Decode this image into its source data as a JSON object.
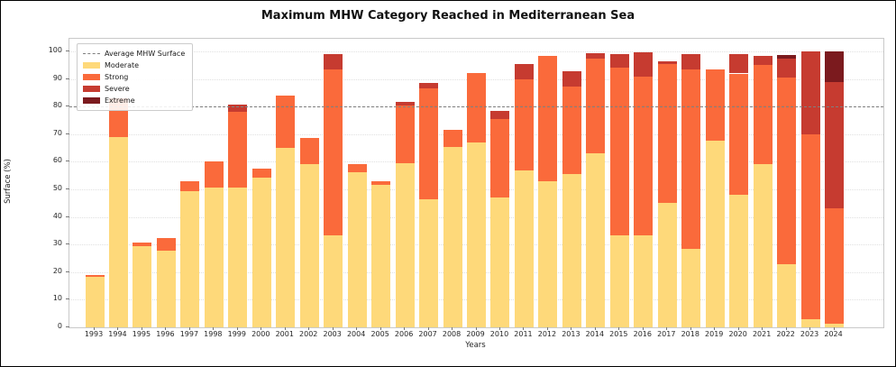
{
  "chart_data": {
    "type": "bar",
    "stacked": true,
    "title": "Maximum MHW Category Reached in Mediterranean Sea",
    "xlabel": "Years",
    "ylabel": "Surface (%)",
    "ylim": [
      0,
      100
    ],
    "yticks": [
      0,
      10,
      20,
      30,
      40,
      50,
      60,
      70,
      80,
      90,
      100
    ],
    "grid": "dotted-horizontal",
    "legend_position": "upper-left",
    "categories": [
      "1993",
      "1994",
      "1995",
      "1996",
      "1997",
      "1998",
      "1999",
      "2000",
      "2001",
      "2002",
      "2003",
      "2004",
      "2005",
      "2006",
      "2007",
      "2008",
      "2009",
      "2010",
      "2011",
      "2012",
      "2013",
      "2014",
      "2015",
      "2016",
      "2017",
      "2018",
      "2019",
      "2020",
      "2021",
      "2022",
      "2023",
      "2024"
    ],
    "series": [
      {
        "name": "Moderate",
        "color": "#FED97A",
        "values": [
          18.2,
          69.0,
          29.3,
          27.8,
          49.4,
          50.5,
          50.7,
          54.2,
          65.2,
          59.0,
          33.5,
          56.2,
          51.6,
          59.6,
          46.5,
          65.5,
          67.0,
          47.0,
          57.0,
          52.8,
          55.5,
          63.2,
          33.5,
          33.5,
          45.2,
          28.4,
          67.5,
          48.0,
          59.0,
          22.8,
          3.1,
          1.2
        ]
      },
      {
        "name": "Strong",
        "color": "#FA6A3B",
        "values": [
          0.9,
          14.0,
          1.3,
          4.6,
          3.5,
          9.8,
          27.3,
          3.4,
          18.8,
          9.7,
          60.0,
          3.0,
          1.4,
          20.7,
          40.0,
          6.2,
          25.2,
          28.5,
          33.0,
          45.5,
          31.8,
          34.3,
          60.5,
          57.5,
          50.1,
          65.1,
          26.0,
          44.0,
          36.0,
          67.6,
          67.0,
          41.8
        ]
      },
      {
        "name": "Severe",
        "color": "#C63B30",
        "values": [
          0,
          0,
          0,
          0,
          0,
          0,
          2.8,
          0,
          0,
          0,
          5.4,
          0,
          0,
          1.4,
          2.0,
          0,
          0,
          3.0,
          5.5,
          0,
          5.5,
          1.9,
          5.0,
          8.8,
          1.2,
          5.5,
          0,
          7.0,
          3.3,
          6.9,
          29.9,
          46.0
        ]
      },
      {
        "name": "Extreme",
        "color": "#7B1A1E",
        "values": [
          0,
          0,
          0,
          0,
          0,
          0,
          0,
          0,
          0,
          0,
          0,
          0,
          0,
          0,
          0,
          0,
          0,
          0,
          0,
          0,
          0,
          0,
          0,
          0,
          0,
          0,
          0,
          0,
          0,
          1.3,
          0,
          11.0
        ]
      }
    ],
    "avg_line": {
      "label": "Average MHW Surface",
      "value": 80.2,
      "color": "#7f7f7f",
      "style": "dashed"
    }
  }
}
